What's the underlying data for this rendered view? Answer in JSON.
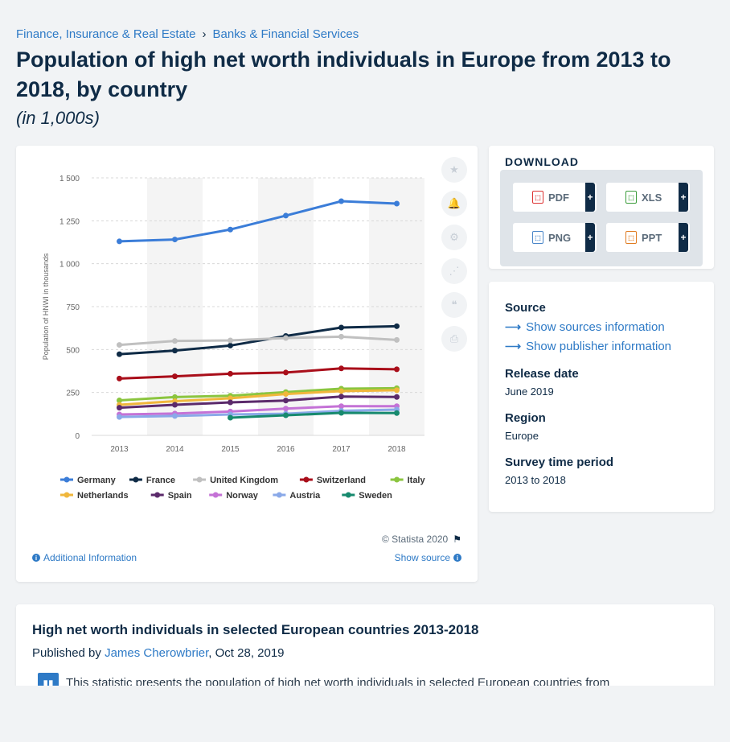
{
  "breadcrumb": {
    "items": [
      "Finance, Insurance & Real Estate",
      "Banks & Financial Services"
    ],
    "separator": "›"
  },
  "title": "Population of high net worth individuals in Europe from 2013 to 2018, by country",
  "subtitle": "(in 1,000s)",
  "toolbar": {
    "icons": [
      "star-icon",
      "bell-icon",
      "gear-icon",
      "share-icon",
      "quote-icon",
      "print-icon"
    ]
  },
  "chart_data": {
    "type": "line",
    "ylabel": "Population of HNWI in thousands",
    "xlabel": "",
    "x": [
      "2013",
      "2014",
      "2015",
      "2016",
      "2017",
      "2018"
    ],
    "ylim": [
      0,
      1500
    ],
    "yticks": [
      "0",
      "250",
      "500",
      "750",
      "1 000",
      "1 250",
      "1 500"
    ],
    "yticks_values": [
      0,
      250,
      500,
      750,
      1000,
      1250,
      1500
    ],
    "grid": true,
    "legend_position": "bottom",
    "series": [
      {
        "name": "Germany",
        "color": "#3b7dd8",
        "values": [
          1130,
          1141,
          1199,
          1280,
          1364,
          1350
        ]
      },
      {
        "name": "France",
        "color": "#0f2b46",
        "values": [
          473,
          494,
          523,
          579,
          628,
          636
        ]
      },
      {
        "name": "United Kingdom",
        "color": "#c0c0c0",
        "values": [
          527,
          550,
          553,
          567,
          575,
          556
        ]
      },
      {
        "name": "Switzerland",
        "color": "#a90e1a",
        "values": [
          331,
          344,
          359,
          366,
          390,
          385
        ]
      },
      {
        "name": "Italy",
        "color": "#8bc53f",
        "values": [
          204,
          223,
          231,
          252,
          272,
          275
        ]
      },
      {
        "name": "Netherlands",
        "color": "#f0b73c",
        "values": [
          178,
          199,
          216,
          241,
          258,
          263
        ]
      },
      {
        "name": "Spain",
        "color": "#5b2a6b",
        "values": [
          161,
          178,
          192,
          203,
          226,
          224
        ]
      },
      {
        "name": "Norway",
        "color": "#c472d6",
        "values": [
          122,
          127,
          139,
          156,
          170,
          170
        ]
      },
      {
        "name": "Austria",
        "color": "#8aa9e8",
        "values": [
          107,
          113,
          122,
          126,
          143,
          150
        ]
      },
      {
        "name": "Sweden",
        "color": "#178a6e",
        "values": [
          null,
          null,
          103,
          117,
          131,
          130
        ]
      }
    ]
  },
  "chart_footer": {
    "copyright": "© Statista 2020",
    "additional_info": "Additional Information",
    "show_source": "Show source"
  },
  "download": {
    "title": "DOWNLOAD",
    "formats": [
      "PDF",
      "XLS",
      "PNG",
      "PPT"
    ],
    "plus": "+"
  },
  "info": {
    "source_label": "Source",
    "show_sources": "Show sources information",
    "show_publisher": "Show publisher information",
    "release_label": "Release date",
    "release_value": "June 2019",
    "region_label": "Region",
    "region_value": "Europe",
    "survey_label": "Survey time period",
    "survey_value": "2013 to 2018"
  },
  "article": {
    "title": "High net worth individuals in selected European countries 2013-2018",
    "published_prefix": "Published by",
    "author": "James Cherowbrier",
    "date": ", Oct 28, 2019",
    "text": "This statistic presents the population of high net worth individuals in selected European countries from"
  }
}
